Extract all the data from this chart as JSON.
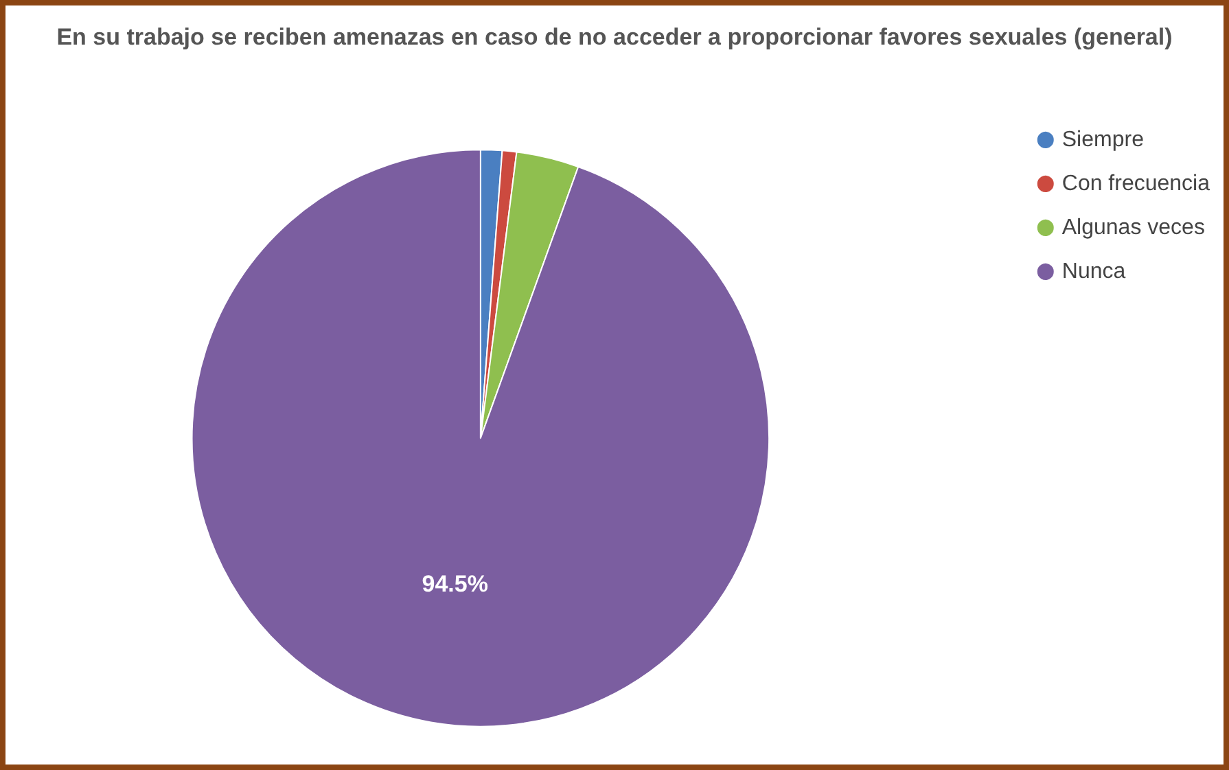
{
  "chart_data": {
    "type": "pie",
    "title": "En su trabajo se reciben amenazas en caso de no acceder a proporcionar favores sexuales (general)",
    "categories": [
      "Siempre",
      "Con frecuencia",
      "Algunas veces",
      "Nunca"
    ],
    "values": [
      1.2,
      0.8,
      3.5,
      94.5
    ],
    "colors": [
      "#4a7fc1",
      "#cc4a3f",
      "#8fbf4f",
      "#7b5ea0"
    ],
    "value_labels": [
      null,
      null,
      null,
      "94.5%"
    ],
    "legend": "top right"
  }
}
